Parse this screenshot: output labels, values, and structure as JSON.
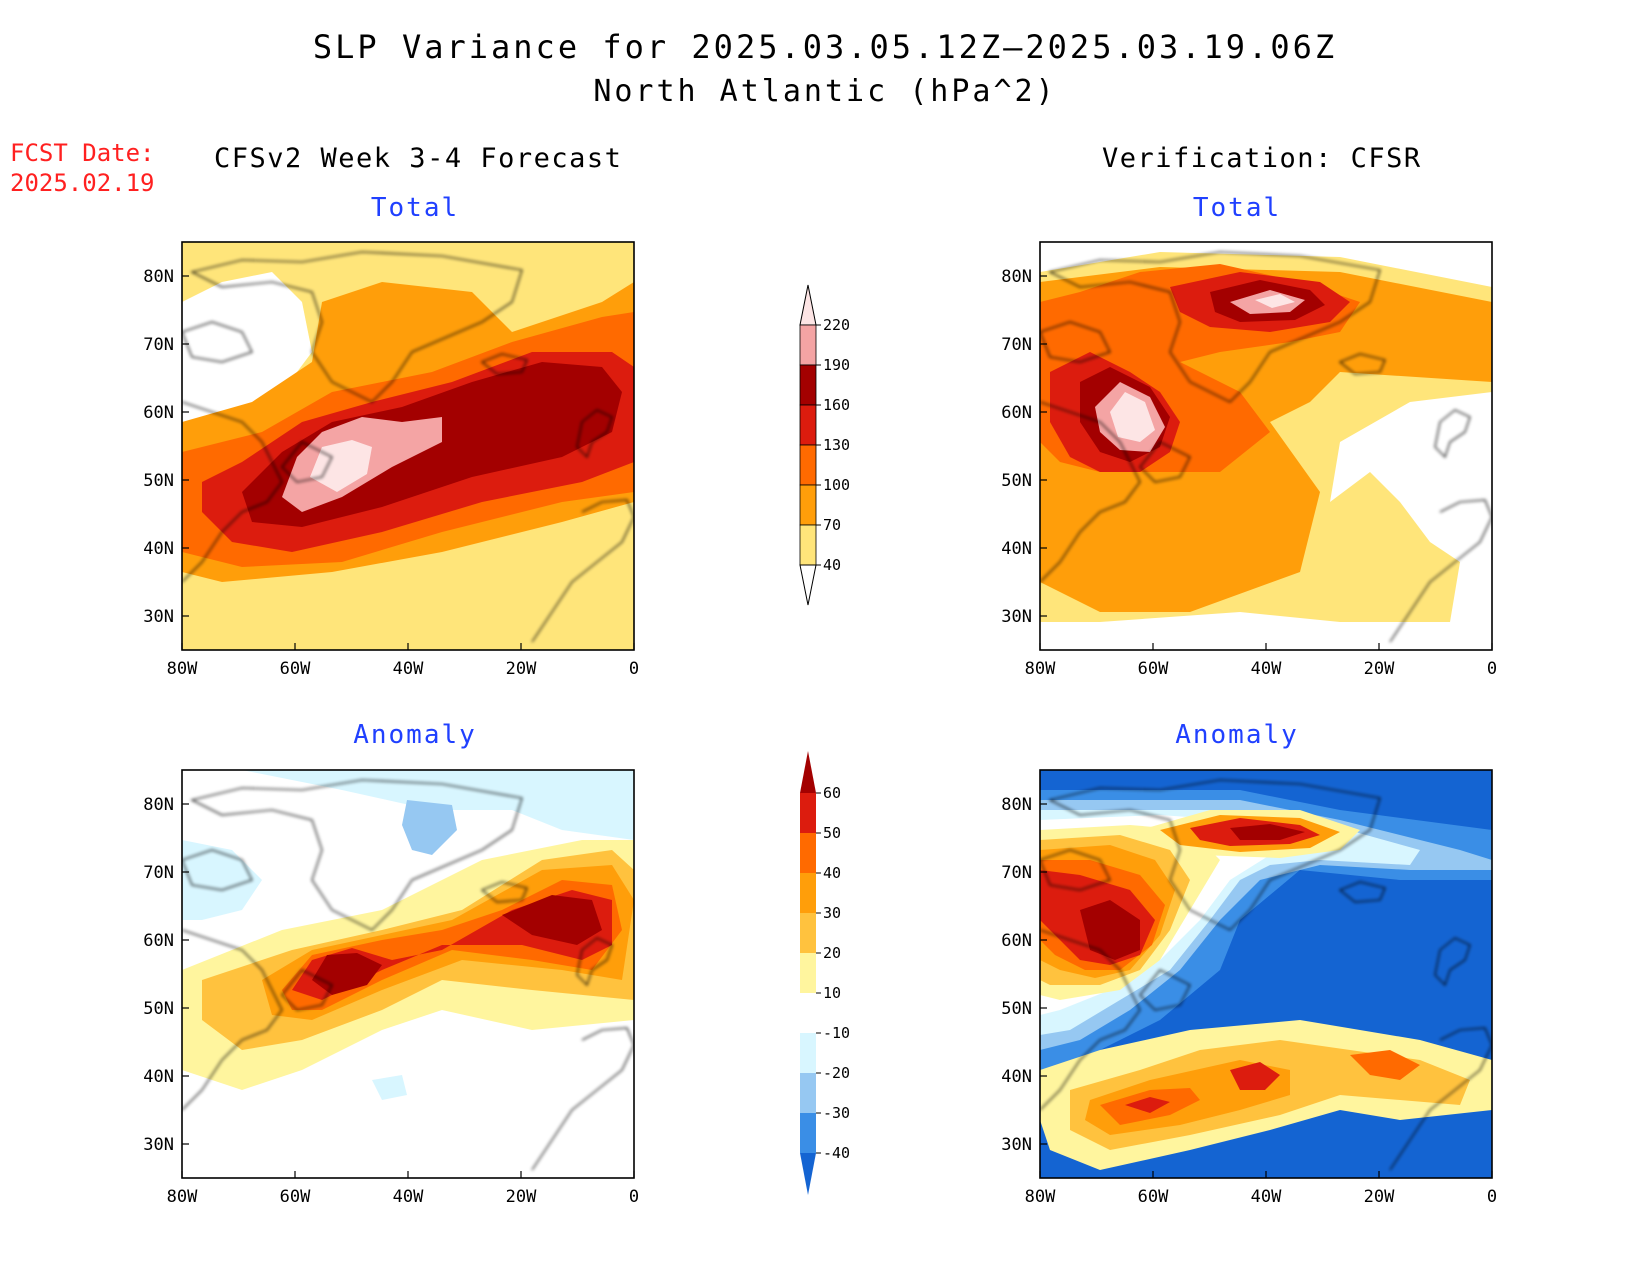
{
  "title": {
    "line1": "SLP Variance for 2025.03.05.12Z–2025.03.19.06Z",
    "line2": "North Atlantic (hPa^2)"
  },
  "fcst_date": {
    "label": "FCST Date:",
    "value": "2025.02.19"
  },
  "columns": {
    "left": "CFSv2 Week 3-4 Forecast",
    "right": "Verification: CFSR"
  },
  "panels": [
    {
      "id": "fcst-total",
      "title": "Total"
    },
    {
      "id": "cfsr-total",
      "title": "Total"
    },
    {
      "id": "fcst-anomaly",
      "title": "Anomaly"
    },
    {
      "id": "cfsr-anomaly",
      "title": "Anomaly"
    }
  ],
  "axes": {
    "lat_labels": [
      "80N",
      "70N",
      "60N",
      "50N",
      "40N",
      "30N"
    ],
    "lon_labels": [
      "80W",
      "60W",
      "40W",
      "20W",
      "0"
    ],
    "lat_range": [
      25,
      85
    ],
    "lon_range": [
      -80,
      0
    ]
  },
  "colorbar_total": {
    "levels": [
      "220",
      "190",
      "160",
      "130",
      "100",
      "70",
      "40"
    ],
    "colors": [
      "#fde5e5",
      "#f4a4a4",
      "#a30000",
      "#dc1c0e",
      "#ff6a00",
      "#ff9e0a",
      "#ffe57a"
    ]
  },
  "colorbar_anomaly": {
    "levels": [
      "60",
      "50",
      "40",
      "30",
      "20",
      "10",
      "-10",
      "-20",
      "-30",
      "-40"
    ],
    "colors": [
      "#a30000",
      "#dc1c0e",
      "#ff6a00",
      "#ff9e0a",
      "#ffc23e",
      "#fff59e",
      "#ffffff",
      "#d8f6ff",
      "#96c8f2",
      "#3a8ee6",
      "#1464d2"
    ]
  },
  "palette": {
    "lightyellow": "#ffe57a",
    "yellow2": "#fff59e",
    "gold": "#ffc23e",
    "orange": "#ff9e0a",
    "darkorange": "#ff6a00",
    "red": "#dc1c0e",
    "darkred": "#a30000",
    "pink": "#f4a4a4",
    "lightpink": "#fde5e5",
    "lightcyan": "#d8f6ff",
    "lightblue": "#96c8f2",
    "blue": "#3a8ee6",
    "darkblue": "#1464d2"
  }
}
